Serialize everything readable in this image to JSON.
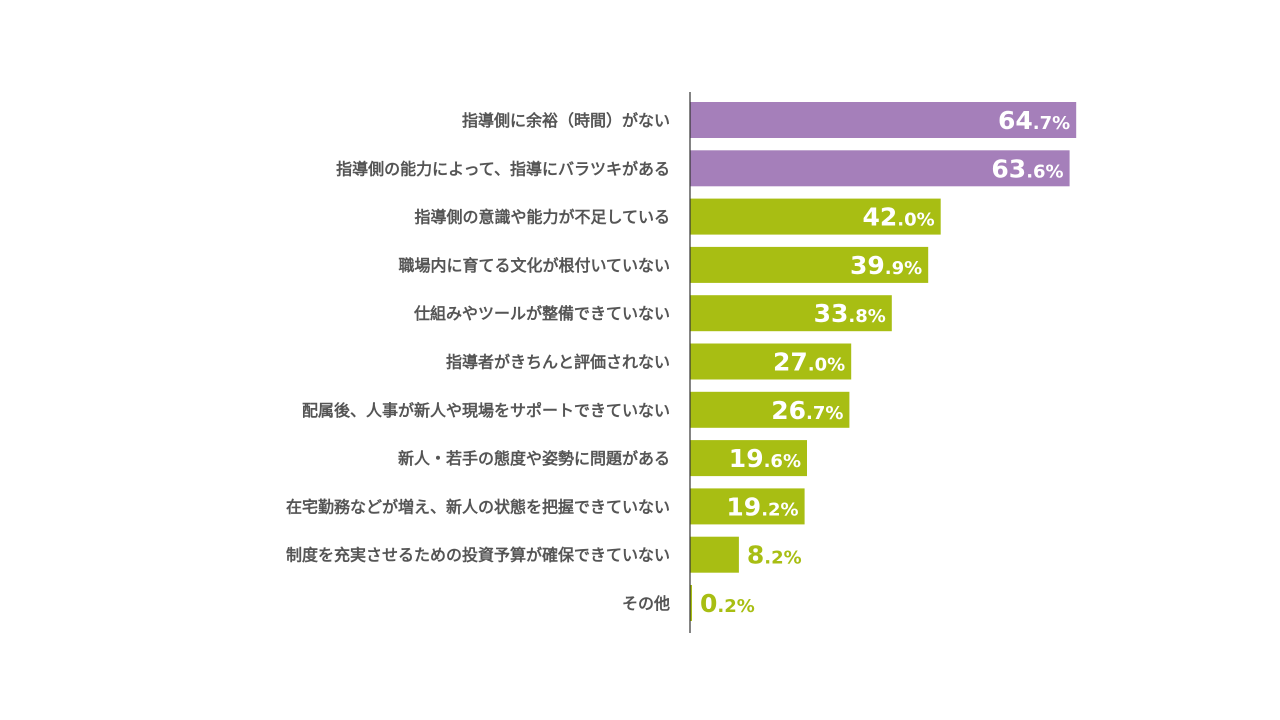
{
  "chart_data": {
    "type": "bar",
    "orientation": "horizontal",
    "categories": [
      "指導側に余裕（時間）がない",
      "指導側の能力によって、指導にバラツキがある",
      "指導側の意識や能力が不足している",
      "職場内に育てる文化が根付いていない",
      "仕組みやツールが整備できていない",
      "指導者がきちんと評価されない",
      "配属後、人事が新人や現場をサポートできていない",
      "新人・若手の態度や姿勢に問題がある",
      "在宅勤務などが増え、新人の状態を把握できていない",
      "制度を充実させるための投資予算が確保できていない",
      "その他"
    ],
    "values": [
      64.7,
      63.6,
      42.0,
      39.9,
      33.8,
      27.0,
      26.7,
      19.6,
      19.2,
      8.2,
      0.2
    ],
    "value_labels": [
      "64.7%",
      "63.6%",
      "42.0%",
      "39.9%",
      "33.8%",
      "27.0%",
      "26.7%",
      "19.6%",
      "19.2%",
      "8.2%",
      "0.2%"
    ],
    "highlight_top_n": 2,
    "colors": {
      "highlight": "#a57fba",
      "normal": "#a8be13",
      "label_inside": "#ffffff",
      "label_outside": "#a8be13",
      "category_text": "#555555",
      "axis": "#333333"
    },
    "xlim": [
      0,
      65
    ],
    "grid": false,
    "legend": "none"
  }
}
